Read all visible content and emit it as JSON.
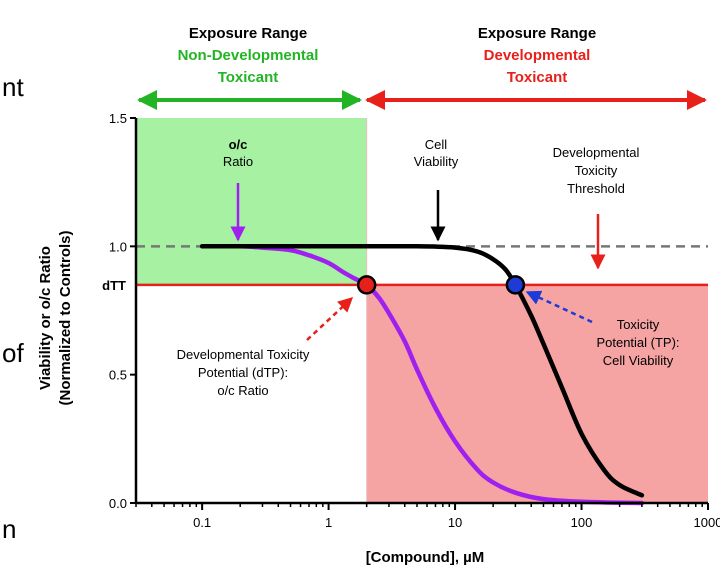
{
  "slide_fragments": [
    "nt",
    "of",
    "n"
  ],
  "header": {
    "left_line1": "Exposure Range",
    "left_line2": "Non-Developmental",
    "left_line3": "Toxicant",
    "right_line1": "Exposure Range",
    "right_line2": "Developmental",
    "right_line3": "Toxicant"
  },
  "annotations": {
    "oc_ratio": [
      "o/c",
      "Ratio"
    ],
    "cell_viability": [
      "Cell",
      "Viability"
    ],
    "dtt_threshold": [
      "Developmental",
      "Toxicity",
      "Threshold"
    ],
    "dtp": [
      "Developmental Toxicity",
      "Potential (dTP):",
      "o/c Ratio"
    ],
    "tp": [
      "Toxicity",
      "Potential (TP):",
      "Cell Viability"
    ]
  },
  "colors": {
    "green": "#22b422",
    "red": "#e8201c",
    "green_fill": "#a6f2a2",
    "red_fill": "#f5a3a3",
    "purple": "#a020f0",
    "blue": "#1f3bd6",
    "black": "#000000",
    "dashed": "#777777"
  },
  "chart_data": {
    "type": "line",
    "xlabel": "[Compound], µM",
    "ylabel_line1": "Viability or o/c Ratio",
    "ylabel_line2": "(Normalized to Controls)",
    "xscale": "log",
    "xlim": [
      0.03,
      1000
    ],
    "ylim": [
      0,
      1.5
    ],
    "x_ticks": [
      0.1,
      1,
      10,
      100,
      1000
    ],
    "x_tick_labels": [
      "0.1",
      "1",
      "10",
      "100",
      "1000"
    ],
    "y_ticks": [
      0.0,
      0.5,
      1.0,
      1.5
    ],
    "y_tick_labels": [
      "0.0",
      "0.5",
      "1.0",
      "1.5"
    ],
    "threshold": {
      "label": "dTT",
      "value": 0.85
    },
    "reference_line": 1.0,
    "regions": [
      {
        "name": "non-developmental",
        "x": [
          0.03,
          2
        ],
        "y": [
          0.85,
          1.5
        ]
      },
      {
        "name": "developmental",
        "x": [
          2,
          1000
        ],
        "y": [
          0,
          0.85
        ]
      }
    ],
    "series": [
      {
        "color": "purple",
        "x": [
          0.1,
          0.2,
          0.3,
          0.5,
          0.7,
          1,
          1.3,
          1.6,
          2,
          2.5,
          3,
          4,
          5,
          7,
          10,
          15,
          20,
          30,
          50,
          100,
          300
        ],
        "y": [
          1.0,
          1.0,
          0.995,
          0.985,
          0.965,
          0.935,
          0.9,
          0.875,
          0.85,
          0.8,
          0.74,
          0.63,
          0.52,
          0.37,
          0.24,
          0.13,
          0.08,
          0.04,
          0.015,
          0.005,
          0.0
        ]
      },
      {
        "color": "black",
        "x": [
          0.1,
          1,
          5,
          10,
          15,
          20,
          25,
          30,
          40,
          50,
          70,
          100,
          150,
          200,
          300
        ],
        "y": [
          1.0,
          1.0,
          1.0,
          0.995,
          0.98,
          0.95,
          0.91,
          0.85,
          0.73,
          0.62,
          0.45,
          0.27,
          0.13,
          0.07,
          0.03
        ]
      }
    ],
    "points": [
      {
        "name": "dTP",
        "x": 2,
        "y": 0.85,
        "color": "red"
      },
      {
        "name": "TP",
        "x": 30,
        "y": 0.85,
        "color": "blue"
      }
    ]
  }
}
